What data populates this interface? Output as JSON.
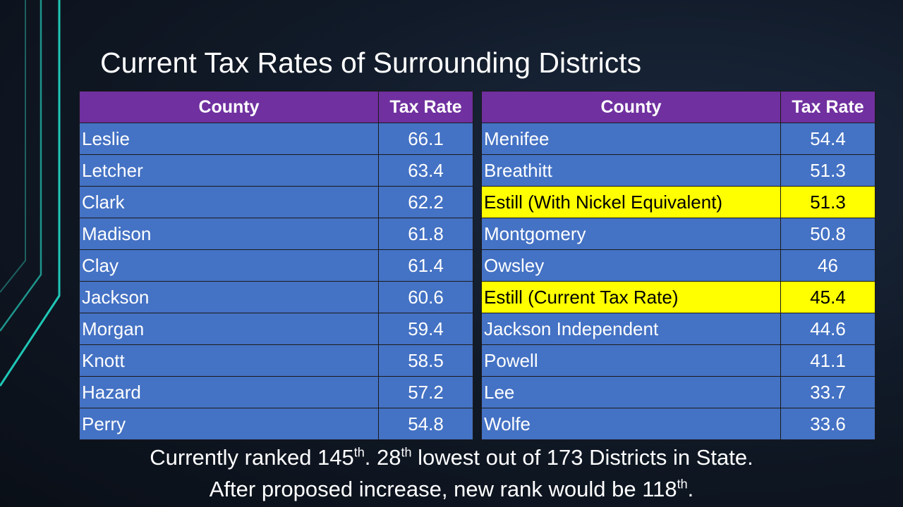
{
  "title": "Current Tax Rates of Surrounding Districts",
  "headers": {
    "county": "County",
    "rate": "Tax Rate"
  },
  "left_rows": [
    {
      "county": "Leslie",
      "rate": "66.1"
    },
    {
      "county": "Letcher",
      "rate": "63.4"
    },
    {
      "county": "Clark",
      "rate": "62.2"
    },
    {
      "county": "Madison",
      "rate": "61.8"
    },
    {
      "county": "Clay",
      "rate": "61.4"
    },
    {
      "county": "Jackson",
      "rate": "60.6"
    },
    {
      "county": "Morgan",
      "rate": "59.4"
    },
    {
      "county": "Knott",
      "rate": "58.5"
    },
    {
      "county": "Hazard",
      "rate": "57.2"
    },
    {
      "county": "Perry",
      "rate": "54.8"
    }
  ],
  "right_rows": [
    {
      "county": "Menifee",
      "rate": "54.4"
    },
    {
      "county": "Breathitt",
      "rate": "51.3"
    },
    {
      "county": "Estill (With Nickel Equivalent)",
      "rate": "51.3"
    },
    {
      "county": "Montgomery",
      "rate": "50.8"
    },
    {
      "county": "Owsley",
      "rate": "46"
    },
    {
      "county": "Estill (Current Tax Rate)",
      "rate": "45.4"
    },
    {
      "county": "Jackson Independent",
      "rate": "44.6"
    },
    {
      "county": "Powell",
      "rate": "41.1"
    },
    {
      "county": "Lee",
      "rate": "33.7"
    },
    {
      "county": "Wolfe",
      "rate": "33.6"
    }
  ],
  "highlight_color": "#ffff00",
  "header_color": "#7030a0",
  "cell_color": "#4472c4",
  "footer": {
    "line1_a": "Currently ranked 145",
    "line1_sup1": "th",
    "line1_b": ".  28",
    "line1_sup2": "th",
    "line1_c": " lowest out of 173 Districts in State.",
    "line2_a": "After proposed increase, new rank would be 118",
    "line2_sup": "th",
    "line2_b": "."
  }
}
